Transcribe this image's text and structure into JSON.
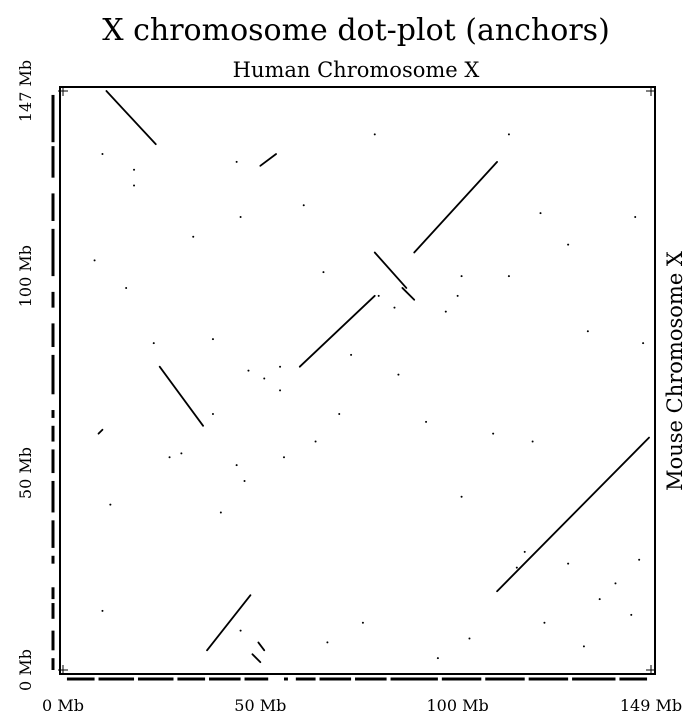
{
  "chart_data": {
    "type": "scatter",
    "title": "X chromosome dot-plot (anchors)",
    "xlabel": "Human Chromosome X",
    "ylabel": "Mouse Chromosome X",
    "xlim": [
      0,
      149
    ],
    "ylim": [
      0,
      147
    ],
    "x_ticks": [
      {
        "value": 0,
        "label": "0 Mb"
      },
      {
        "value": 50,
        "label": "50 Mb"
      },
      {
        "value": 100,
        "label": "100 Mb"
      },
      {
        "value": 149,
        "label": "149 Mb"
      }
    ],
    "y_ticks": [
      {
        "value": 0,
        "label": "0 Mb"
      },
      {
        "value": 50,
        "label": "50 Mb"
      },
      {
        "value": 100,
        "label": "100 Mb"
      },
      {
        "value": 147,
        "label": "147 Mb"
      }
    ],
    "grid": false,
    "segments": [
      {
        "x": [
          11,
          23.5
        ],
        "y": [
          147,
          133.5
        ]
      },
      {
        "x": [
          50,
          54
        ],
        "y": [
          128,
          131
        ]
      },
      {
        "x": [
          35.5,
          24.5
        ],
        "y": [
          62,
          77
        ]
      },
      {
        "x": [
          89,
          110
        ],
        "y": [
          106,
          129
        ]
      },
      {
        "x": [
          60,
          79
        ],
        "y": [
          77,
          95
        ]
      },
      {
        "x": [
          79,
          87
        ],
        "y": [
          106,
          97
        ]
      },
      {
        "x": [
          86,
          89
        ],
        "y": [
          97,
          94
        ]
      },
      {
        "x": [
          110,
          148.5
        ],
        "y": [
          20,
          59
        ]
      },
      {
        "x": [
          36.5,
          47.5
        ],
        "y": [
          5,
          19
        ]
      },
      {
        "x": [
          48,
          50
        ],
        "y": [
          4,
          2
        ]
      },
      {
        "x": [
          49.5,
          51
        ],
        "y": [
          7,
          5
        ]
      },
      {
        "x": [
          9,
          10
        ],
        "y": [
          60,
          61
        ]
      }
    ],
    "points": [
      [
        10,
        131
      ],
      [
        18,
        127
      ],
      [
        44,
        129
      ],
      [
        79,
        136
      ],
      [
        113,
        136
      ],
      [
        18,
        123
      ],
      [
        33,
        110
      ],
      [
        80,
        95
      ],
      [
        100,
        95
      ],
      [
        113,
        100
      ],
      [
        121,
        116
      ],
      [
        128,
        108
      ],
      [
        73,
        80
      ],
      [
        84,
        92
      ],
      [
        55,
        77
      ],
      [
        51,
        74
      ],
      [
        47,
        76
      ],
      [
        56,
        54
      ],
      [
        38,
        65
      ],
      [
        44,
        52
      ],
      [
        46,
        48
      ],
      [
        55,
        71
      ],
      [
        109,
        60
      ],
      [
        92,
        63
      ],
      [
        101,
        44
      ],
      [
        117,
        30
      ],
      [
        128,
        27
      ],
      [
        136,
        18
      ],
      [
        144,
        14
      ],
      [
        146,
        28
      ],
      [
        10,
        15
      ],
      [
        45,
        10
      ],
      [
        67,
        7
      ],
      [
        76,
        12
      ],
      [
        95,
        3
      ],
      [
        103,
        8
      ],
      [
        122,
        12
      ],
      [
        132,
        6
      ],
      [
        140,
        22
      ],
      [
        147,
        83
      ],
      [
        145,
        115
      ],
      [
        38,
        84
      ],
      [
        27,
        54
      ],
      [
        119,
        58
      ],
      [
        64,
        58
      ],
      [
        23,
        83
      ],
      [
        30,
        55
      ],
      [
        101,
        100
      ],
      [
        97,
        91
      ],
      [
        40,
        40
      ],
      [
        70,
        65
      ],
      [
        85,
        75
      ],
      [
        8,
        104
      ],
      [
        16,
        97
      ],
      [
        133,
        86
      ],
      [
        66,
        101
      ],
      [
        45,
        115
      ],
      [
        61,
        118
      ],
      [
        115,
        26
      ],
      [
        12,
        42
      ]
    ],
    "y_axis_rug": [
      [
        0,
        3
      ],
      [
        5,
        10
      ],
      [
        13,
        17
      ],
      [
        18,
        21
      ],
      [
        27,
        29
      ],
      [
        31,
        38
      ],
      [
        40,
        48
      ],
      [
        50,
        56
      ],
      [
        58,
        62
      ],
      [
        64,
        66
      ],
      [
        70,
        80
      ],
      [
        82,
        88
      ],
      [
        92,
        96
      ],
      [
        100,
        112
      ],
      [
        114,
        121
      ],
      [
        125,
        133
      ],
      [
        134,
        146
      ]
    ],
    "x_axis_rug": [
      [
        1,
        8
      ],
      [
        9,
        18
      ],
      [
        19,
        28
      ],
      [
        29,
        36
      ],
      [
        37,
        45
      ],
      [
        46,
        52
      ],
      [
        56,
        57
      ],
      [
        59,
        64
      ],
      [
        65,
        73
      ],
      [
        74,
        82
      ],
      [
        83,
        95
      ],
      [
        96,
        106
      ],
      [
        107,
        117
      ],
      [
        118,
        128
      ],
      [
        129,
        140
      ],
      [
        141,
        148
      ]
    ]
  }
}
